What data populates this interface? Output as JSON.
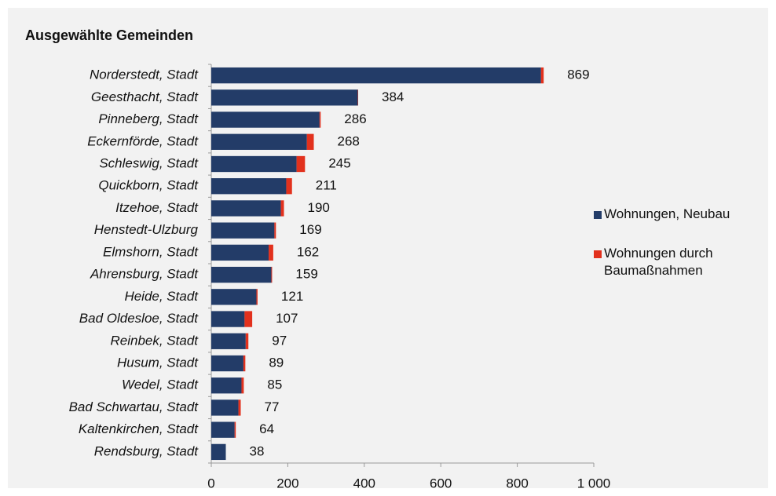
{
  "chart_data": {
    "type": "stacked_barh",
    "title": "Ausgewählte Gemeinden",
    "categories": [
      "Norderstedt, Stadt",
      "Geesthacht, Stadt",
      "Pinneberg, Stadt",
      "Eckernförde, Stadt",
      "Schleswig, Stadt",
      "Quickborn, Stadt",
      "Itzehoe, Stadt",
      "Henstedt-Ulzburg",
      "Elmshorn, Stadt",
      "Ahrensburg, Stadt",
      "Heide, Stadt",
      "Bad Oldesloe, Stadt",
      "Reinbek, Stadt",
      "Husum, Stadt",
      "Wedel, Stadt",
      "Bad Schwartau, Stadt",
      "Kaltenkirchen, Stadt",
      "Rendsburg, Stadt"
    ],
    "series": [
      {
        "name": "Wohnungen, Neubau",
        "color": "#233c68",
        "values": [
          862,
          383,
          283,
          250,
          223,
          196,
          182,
          165,
          150,
          157,
          118,
          87,
          90,
          84,
          79,
          71,
          61,
          38
        ]
      },
      {
        "name": "Wohnungen durch Baumaßnahmen",
        "color": "#e2311d",
        "values": [
          7,
          1,
          3,
          18,
          22,
          15,
          8,
          4,
          12,
          2,
          3,
          20,
          7,
          5,
          6,
          6,
          3,
          0
        ]
      }
    ],
    "totals": [
      869,
      384,
      286,
      268,
      245,
      211,
      190,
      169,
      162,
      159,
      121,
      107,
      97,
      89,
      85,
      77,
      64,
      38
    ],
    "xlim": [
      0,
      1000
    ],
    "xticks": [
      0,
      200,
      400,
      600,
      800,
      {
        "value": 1000,
        "label": "1 000"
      }
    ],
    "legend": "right"
  }
}
